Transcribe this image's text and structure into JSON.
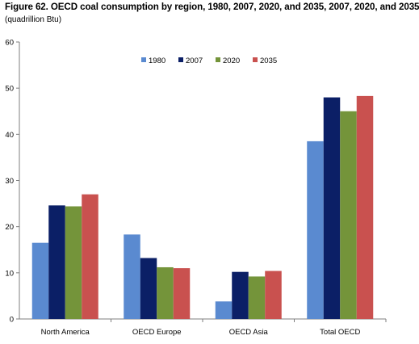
{
  "chart_data": {
    "type": "bar",
    "title": "Figure  62. OECD coal consumption by region, 1980, 2007, 2020, and 2035, 2007, 2020, and 2035",
    "subtitle": "(quadrillion Btu)",
    "xlabel": "",
    "ylabel": "",
    "ylim": [
      0,
      60
    ],
    "yticks": [
      0,
      10,
      20,
      30,
      40,
      50,
      60
    ],
    "grid": false,
    "legend_position": "top-center",
    "categories": [
      "North America",
      "OECD Europe",
      "OECD Asia",
      "Total OECD"
    ],
    "series": [
      {
        "name": "1980",
        "color": "#5a8ad0",
        "values": [
          16.5,
          18.3,
          3.8,
          38.5
        ]
      },
      {
        "name": "2007",
        "color": "#0b1f66",
        "values": [
          24.6,
          13.2,
          10.2,
          48.0
        ]
      },
      {
        "name": "2020",
        "color": "#74943a",
        "values": [
          24.4,
          11.2,
          9.2,
          45.0
        ]
      },
      {
        "name": "2035",
        "color": "#c9514f",
        "values": [
          27.0,
          11.0,
          10.4,
          48.3
        ]
      }
    ]
  }
}
